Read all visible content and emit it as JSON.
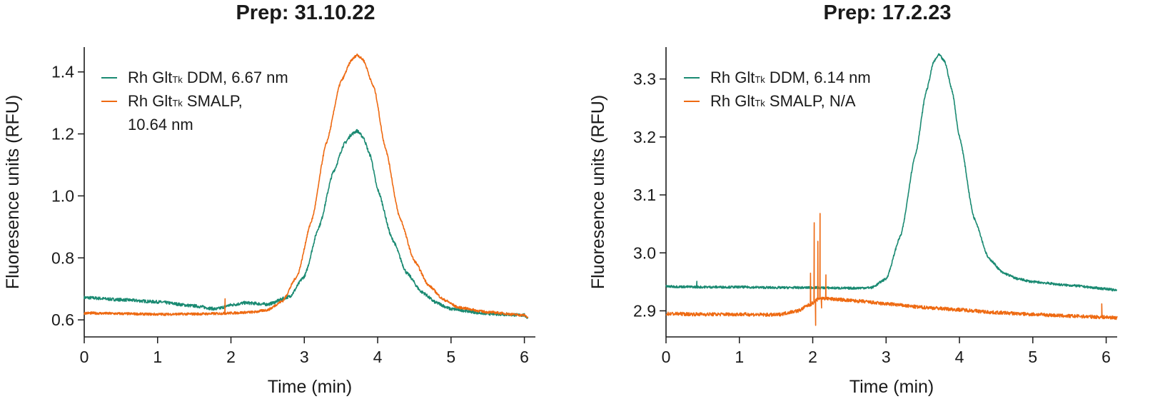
{
  "chart_data": [
    {
      "type": "line",
      "title": "Prep: 31.10.22",
      "xlabel": "Time (min)",
      "ylabel": "Fluoresence units (RFU)",
      "xlim": [
        0,
        6.15
      ],
      "ylim": [
        0.545,
        1.48
      ],
      "xticks": [
        0,
        1,
        2,
        3,
        4,
        5,
        6
      ],
      "yticks": [
        0.6,
        0.8,
        1.0,
        1.2,
        1.4
      ],
      "ytick_labels": [
        "0.6",
        "0.8",
        "1.0",
        "1.2",
        "1.4"
      ],
      "legend_placement": "top-left",
      "series": [
        {
          "name": "Rh GltTk DDM, 6.67 nm",
          "legend": {
            "prefix": "Rh Glt",
            "sub": "Tk",
            "suffix": " DDM, 6.67 nm"
          },
          "color": "#1a8a72",
          "x": [
            0,
            0.5,
            1.0,
            1.5,
            1.8,
            2.0,
            2.2,
            2.5,
            2.8,
            3.0,
            3.2,
            3.4,
            3.55,
            3.65,
            3.72,
            3.8,
            3.9,
            4.0,
            4.2,
            4.4,
            4.6,
            4.8,
            5.0,
            5.5,
            6.0,
            6.05
          ],
          "y": [
            0.672,
            0.665,
            0.658,
            0.645,
            0.635,
            0.648,
            0.655,
            0.65,
            0.675,
            0.74,
            0.9,
            1.08,
            1.17,
            1.2,
            1.21,
            1.19,
            1.13,
            1.02,
            0.86,
            0.75,
            0.69,
            0.655,
            0.635,
            0.62,
            0.615,
            0.605
          ],
          "noise": 0.005,
          "spikes": []
        },
        {
          "name": "Rh GltTk SMALP, 10.64 nm",
          "legend": {
            "prefix": "Rh Glt",
            "sub": "Tk",
            "suffix": " SMALP,",
            "line2": "10.64 nm"
          },
          "color": "#ee6a12",
          "x": [
            0,
            0.5,
            1.0,
            1.5,
            1.8,
            2.0,
            2.3,
            2.5,
            2.7,
            2.9,
            3.1,
            3.3,
            3.5,
            3.65,
            3.72,
            3.8,
            3.95,
            4.1,
            4.3,
            4.5,
            4.7,
            4.9,
            5.1,
            5.5,
            6.0,
            6.05
          ],
          "y": [
            0.622,
            0.62,
            0.618,
            0.619,
            0.62,
            0.622,
            0.625,
            0.632,
            0.66,
            0.74,
            0.92,
            1.17,
            1.37,
            1.44,
            1.455,
            1.44,
            1.35,
            1.16,
            0.93,
            0.79,
            0.71,
            0.665,
            0.64,
            0.625,
            0.615,
            0.608
          ],
          "noise": 0.004,
          "spikes": [
            {
              "x": 1.92,
              "y": 0.668
            }
          ]
        }
      ]
    },
    {
      "type": "line",
      "title": "Prep: 17.2.23",
      "xlabel": "Time (min)",
      "ylabel": "Fluoresence units (RFU)",
      "xlim": [
        0,
        6.15
      ],
      "ylim": [
        2.855,
        3.355
      ],
      "xticks": [
        0,
        1,
        2,
        3,
        4,
        5,
        6
      ],
      "yticks": [
        2.9,
        3.0,
        3.1,
        3.2,
        3.3
      ],
      "ytick_labels": [
        "2.9",
        "3.0",
        "3.1",
        "3.2",
        "3.3"
      ],
      "legend_placement": "top-left",
      "series": [
        {
          "name": "Rh GltTk DDM, 6.14 nm",
          "legend": {
            "prefix": "Rh Glt",
            "sub": "Tk",
            "suffix": " DDM, 6.14 nm"
          },
          "color": "#1a8a72",
          "x": [
            0,
            0.5,
            1.0,
            1.5,
            2.0,
            2.5,
            2.8,
            3.0,
            3.2,
            3.4,
            3.55,
            3.65,
            3.72,
            3.8,
            3.9,
            4.0,
            4.2,
            4.4,
            4.6,
            4.8,
            5.0,
            5.5,
            6.0,
            6.15
          ],
          "y": [
            2.942,
            2.941,
            2.941,
            2.94,
            2.94,
            2.939,
            2.94,
            2.955,
            3.03,
            3.17,
            3.28,
            3.33,
            3.342,
            3.33,
            3.28,
            3.2,
            3.06,
            2.99,
            2.965,
            2.955,
            2.95,
            2.944,
            2.938,
            2.935
          ],
          "noise": 0.002,
          "spikes": [
            {
              "x": 0.42,
              "y": 2.951
            }
          ]
        },
        {
          "name": "Rh GltTk SMALP, N/A",
          "legend": {
            "prefix": "Rh Glt",
            "sub": "Tk",
            "suffix": " SMALP, N/A"
          },
          "color": "#ee6a12",
          "x": [
            0,
            0.5,
            1.0,
            1.5,
            1.8,
            1.95,
            2.1,
            2.3,
            2.6,
            3.0,
            3.5,
            4.0,
            4.5,
            5.0,
            5.5,
            6.0,
            6.15
          ],
          "y": [
            2.895,
            2.894,
            2.894,
            2.893,
            2.9,
            2.91,
            2.922,
            2.92,
            2.917,
            2.912,
            2.906,
            2.902,
            2.897,
            2.894,
            2.891,
            2.889,
            2.888
          ],
          "noise": 0.003,
          "spikes": [
            {
              "x": 1.97,
              "y": 2.965
            },
            {
              "x": 2.02,
              "y": 3.052
            },
            {
              "x": 2.04,
              "y": 2.875
            },
            {
              "x": 2.07,
              "y": 3.02
            },
            {
              "x": 2.1,
              "y": 3.068
            },
            {
              "x": 2.12,
              "y": 2.905
            },
            {
              "x": 2.18,
              "y": 2.962
            },
            {
              "x": 5.94,
              "y": 2.912
            }
          ]
        }
      ]
    }
  ]
}
